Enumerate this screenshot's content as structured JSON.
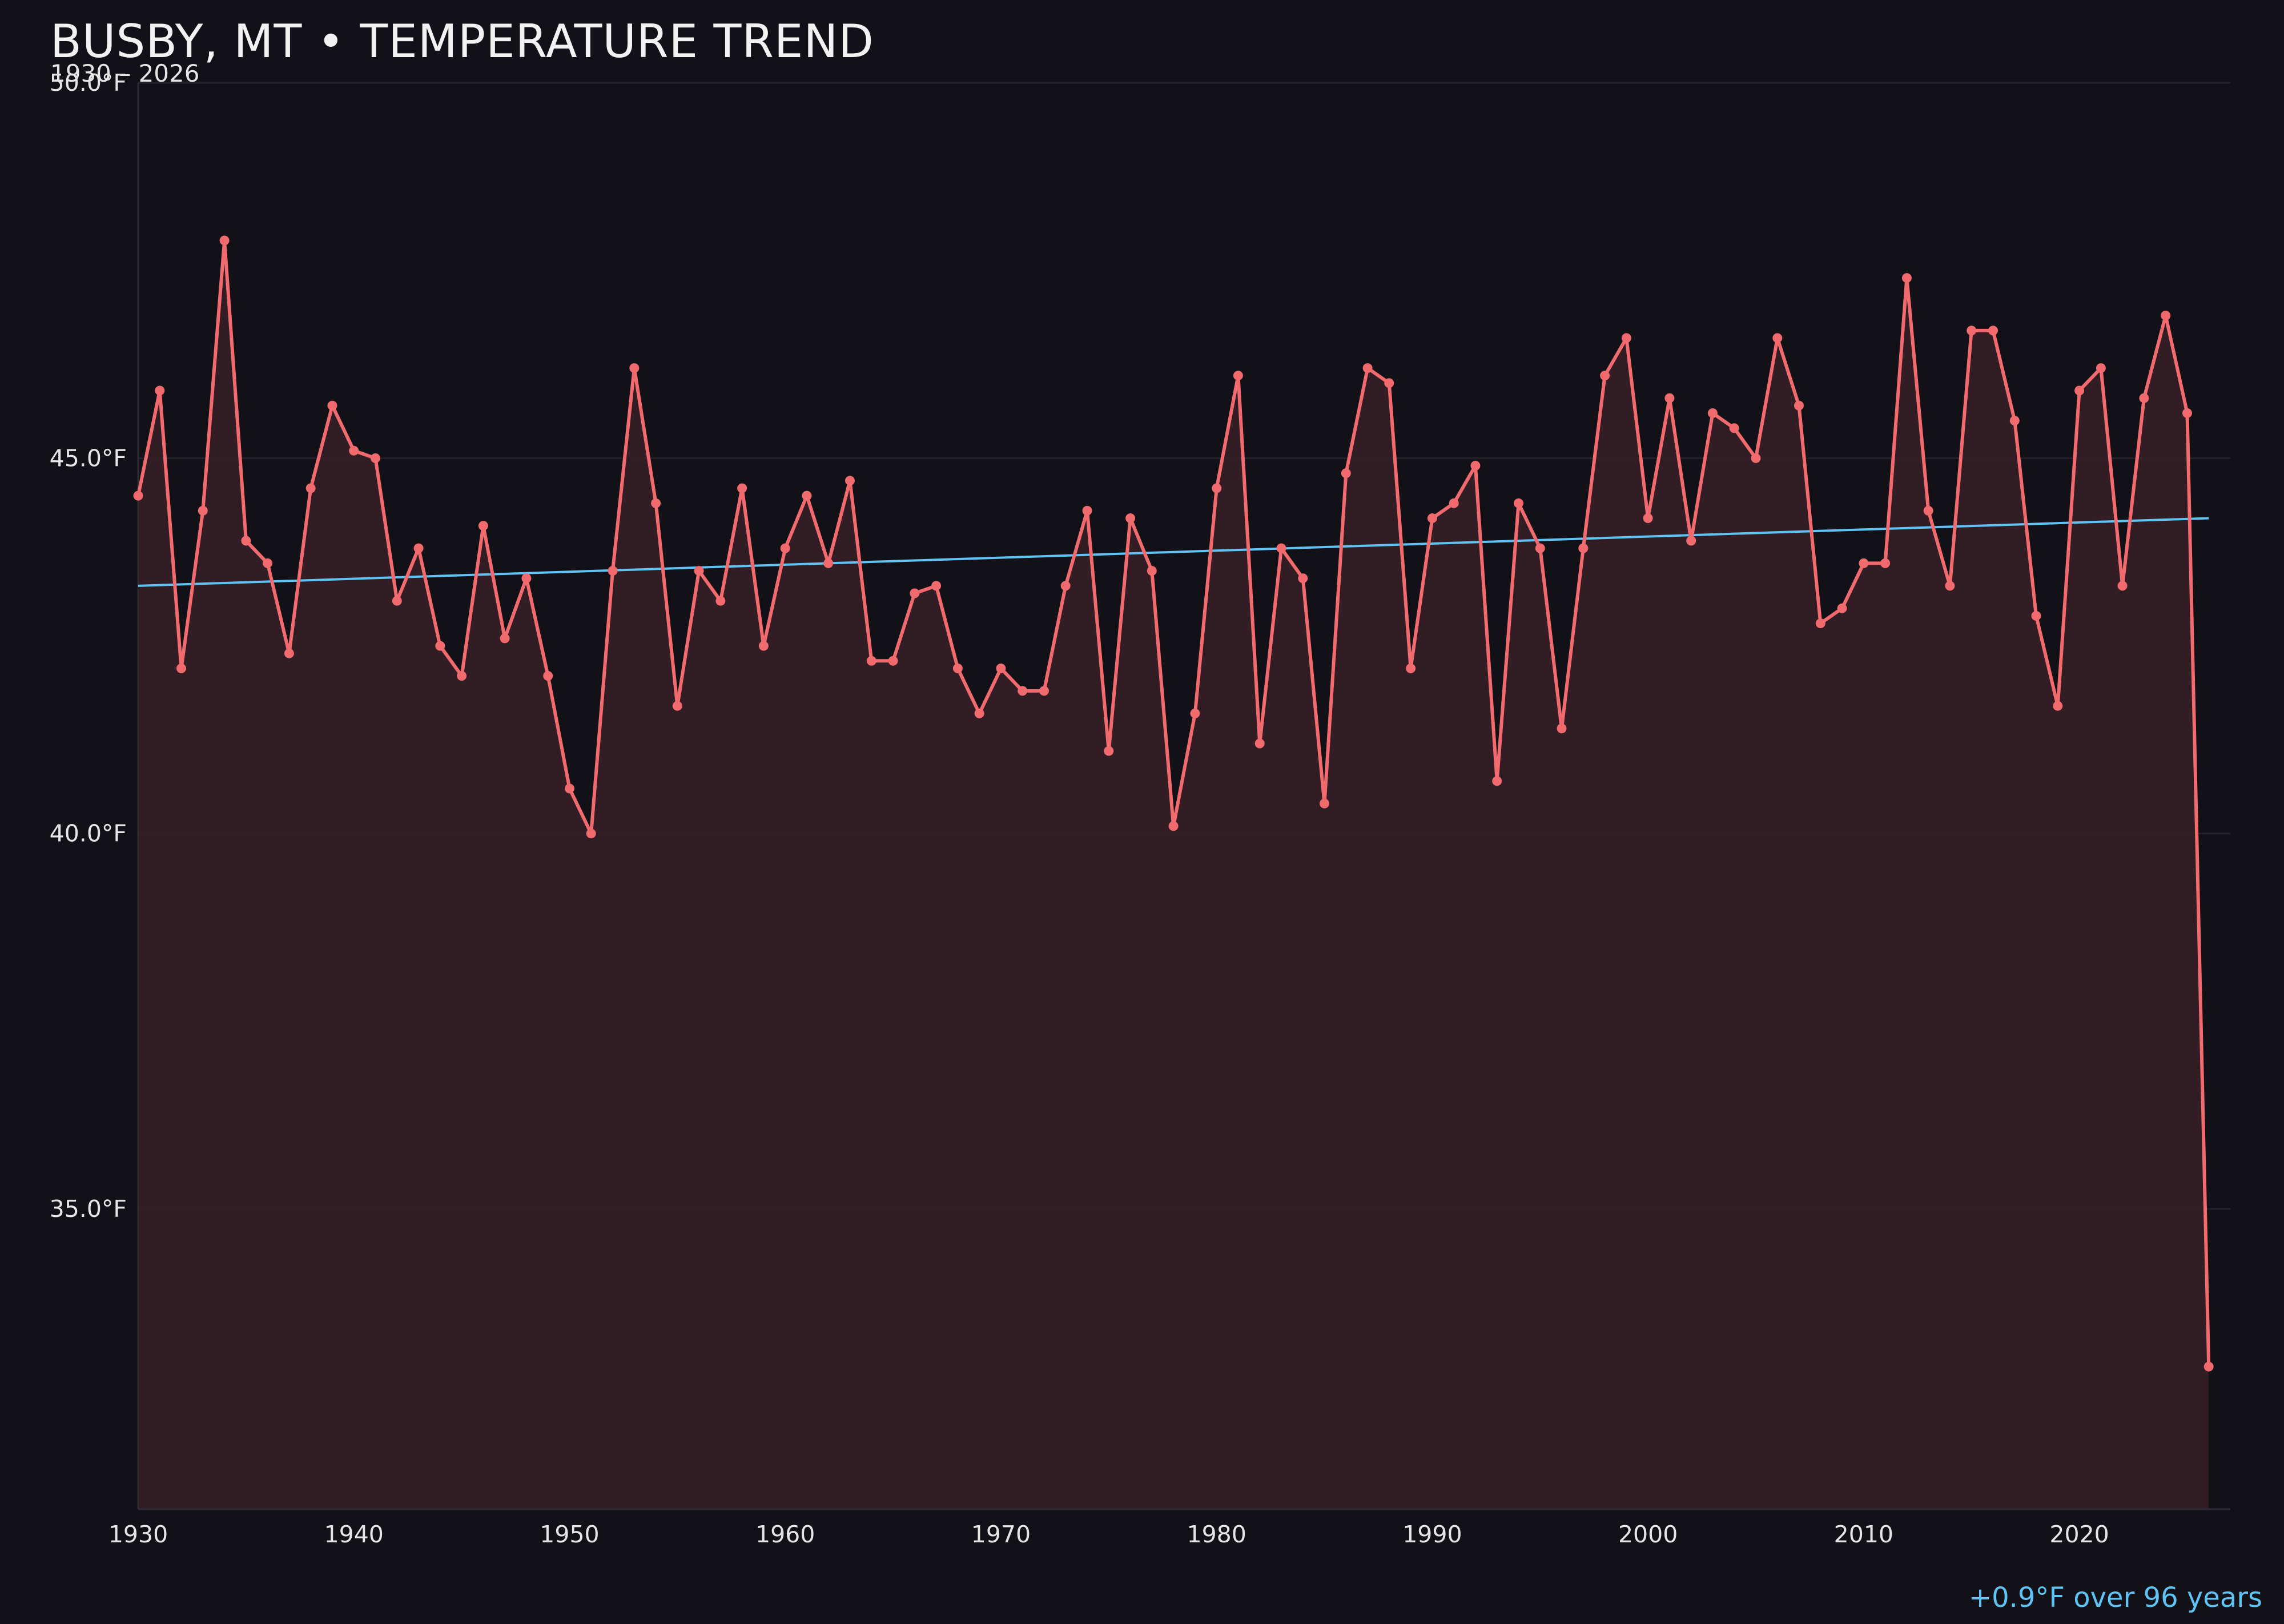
{
  "header": {
    "title": "BUSBY, MT • TEMPERATURE TREND",
    "subtitle": "1930 – 2026"
  },
  "footer": {
    "trend_note": "+0.9°F over 96 years"
  },
  "colors": {
    "background": "#121117",
    "series_line": "#f06a6e",
    "series_fill": "#351f26",
    "trend_line": "#5fc4f5",
    "grid": "#24212a"
  },
  "chart_data": {
    "type": "line",
    "title": "BUSBY, MT • TEMPERATURE TREND",
    "subtitle": "1930 – 2026",
    "xlabel": "",
    "ylabel": "",
    "xlim": [
      1930,
      2027
    ],
    "ylim": [
      31,
      50
    ],
    "x_ticks": [
      1930,
      1940,
      1950,
      1960,
      1970,
      1980,
      1990,
      2000,
      2010,
      2020
    ],
    "x_tick_labels": [
      "1930",
      "1940",
      "1950",
      "1960",
      "1970",
      "1980",
      "1990",
      "2000",
      "2010",
      "2020"
    ],
    "y_ticks": [
      35,
      40,
      45,
      50
    ],
    "y_tick_labels": [
      "35.0°F",
      "40.0°F",
      "45.0°F",
      "50.0°F"
    ],
    "grid": true,
    "area_fill": true,
    "series": [
      {
        "x": [
          1930,
          1931,
          1932,
          1933,
          1934,
          1935,
          1936,
          1937,
          1938,
          1939,
          1940,
          1941,
          1942,
          1943,
          1944,
          1945,
          1946,
          1947,
          1948,
          1949,
          1950,
          1951,
          1952,
          1953,
          1954,
          1955,
          1956,
          1957,
          1958,
          1959,
          1960,
          1961,
          1962,
          1963,
          1964,
          1965,
          1966,
          1967,
          1968,
          1969,
          1970,
          1971,
          1972,
          1973,
          1974,
          1975,
          1976,
          1977,
          1978,
          1979,
          1980,
          1981,
          1982,
          1983,
          1984,
          1985,
          1986,
          1987,
          1988,
          1989,
          1990,
          1991,
          1992,
          1993,
          1994,
          1995,
          1996,
          1997,
          1998,
          1999,
          2000,
          2001,
          2002,
          2003,
          2004,
          2005,
          2006,
          2007,
          2008,
          2009,
          2010,
          2011,
          2012,
          2013,
          2014,
          2015,
          2016,
          2017,
          2018,
          2019,
          2020,
          2021,
          2022,
          2023,
          2024,
          2025,
          2026
        ],
        "values": [
          44.5,
          45.9,
          42.2,
          44.3,
          47.9,
          43.9,
          43.6,
          42.4,
          44.6,
          45.7,
          45.1,
          45.0,
          43.1,
          43.8,
          42.5,
          42.1,
          44.1,
          42.6,
          43.4,
          42.1,
          40.6,
          40.0,
          43.5,
          46.2,
          44.4,
          41.7,
          43.5,
          43.1,
          44.6,
          42.5,
          43.8,
          44.5,
          43.6,
          44.7,
          42.3,
          42.3,
          43.2,
          43.3,
          42.2,
          41.6,
          42.2,
          41.9,
          41.9,
          43.3,
          44.3,
          41.1,
          44.2,
          43.5,
          40.1,
          41.6,
          44.6,
          46.1,
          41.2,
          43.8,
          43.4,
          40.4,
          44.8,
          46.2,
          46.0,
          42.2,
          44.2,
          44.4,
          44.9,
          40.7,
          44.4,
          43.8,
          41.4,
          43.8,
          46.1,
          46.6,
          44.2,
          45.8,
          43.9,
          45.6,
          45.4,
          45.0,
          46.6,
          45.7,
          42.8,
          43.0,
          43.6,
          43.6,
          47.4,
          44.3,
          43.3,
          46.7,
          46.7,
          45.5,
          42.9,
          41.7,
          45.9,
          46.2,
          43.3,
          45.8,
          46.9,
          45.6,
          32.9
        ]
      }
    ],
    "trend": {
      "x": [
        1930,
        2026
      ],
      "values": [
        43.3,
        44.2
      ],
      "change_label": "+0.9°F over 96 years"
    }
  }
}
